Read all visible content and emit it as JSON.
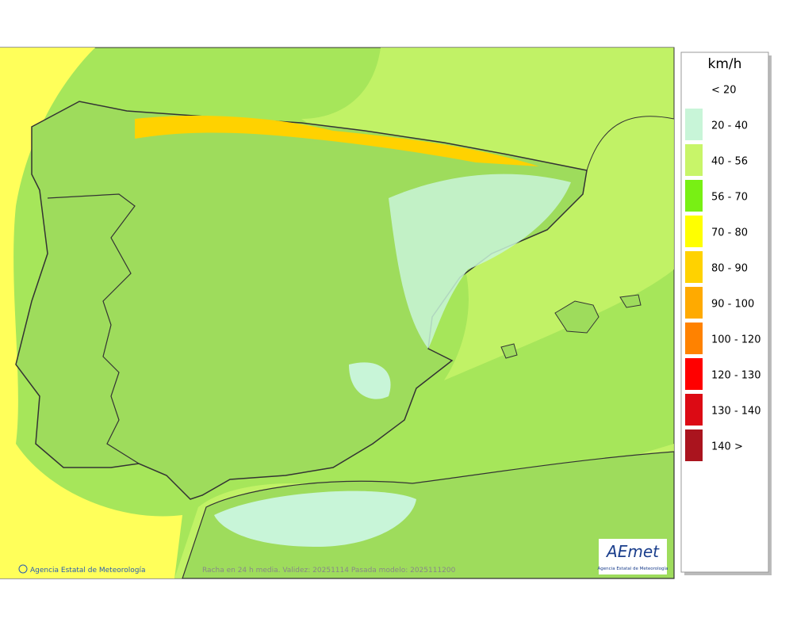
{
  "legend": {
    "unit": "km/h",
    "items": [
      {
        "label": "< 20",
        "color": "#ffffff"
      },
      {
        "label": "20 - 40",
        "color": "#c8f5d8"
      },
      {
        "label": "40 - 56",
        "color": "#c8f569"
      },
      {
        "label": "56 - 70",
        "color": "#78f014"
      },
      {
        "label": "70 - 80",
        "color": "#ffff00"
      },
      {
        "label": "80 - 90",
        "color": "#ffd200"
      },
      {
        "label": "90 - 100",
        "color": "#ffaa00"
      },
      {
        "label": "100 - 120",
        "color": "#ff8200"
      },
      {
        "label": "120 - 130",
        "color": "#ff0000"
      },
      {
        "label": "130 - 140",
        "color": "#dc0a14"
      },
      {
        "label": "140 >",
        "color": "#aa141e"
      }
    ]
  },
  "footer": {
    "credit": "Agencia Estatal de Meteorología",
    "caption": "Racha en 24 h media. Validez: 20251114 Pasada modelo: 2025111200"
  },
  "logo": {
    "name": "AEmet",
    "subtitle": "Agencia Estatal de Meteorología"
  }
}
